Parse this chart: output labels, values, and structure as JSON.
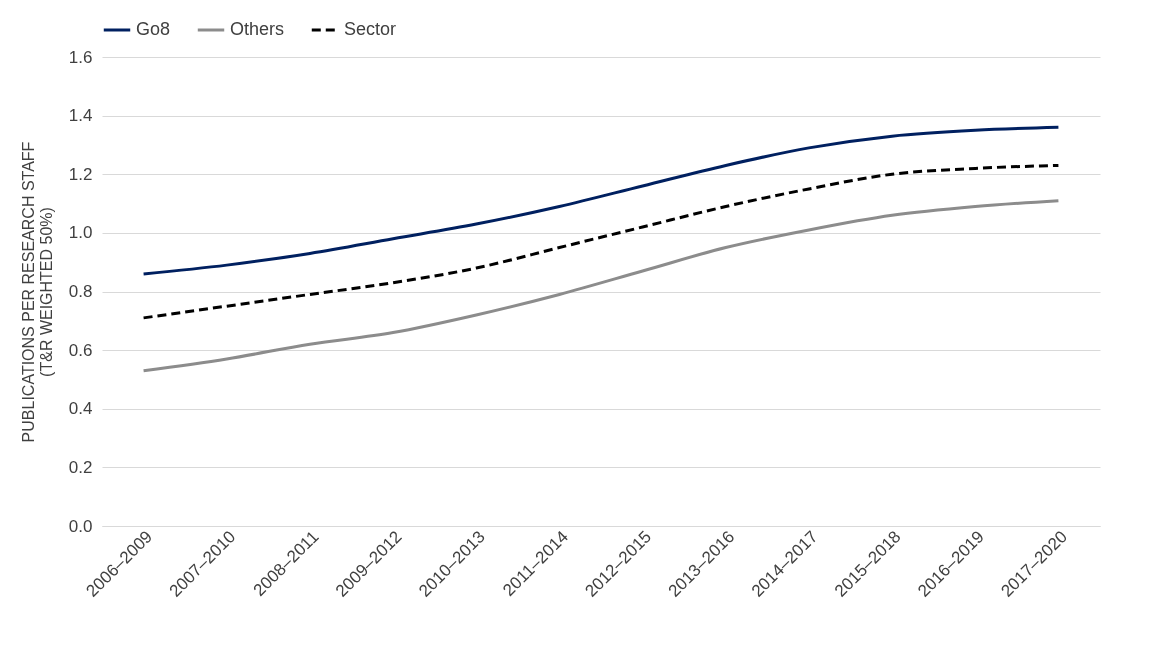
{
  "chart_data": {
    "type": "line",
    "ylabel": "PUBLICATIONS PER RESEARCH STAFF (T&R WEIGHTED 50%)",
    "categories": [
      "2006–2009",
      "2007–2010",
      "2008–2011",
      "2009–2012",
      "2010–2013",
      "2011–2014",
      "2012–2015",
      "2013–2016",
      "2014–2017",
      "2015–2018",
      "2016–2019",
      "2017–2020"
    ],
    "series": [
      {
        "name": "Go8",
        "color": "#002060",
        "line_style": "solid",
        "values": [
          0.86,
          0.89,
          0.93,
          0.98,
          1.03,
          1.09,
          1.16,
          1.23,
          1.29,
          1.33,
          1.35,
          1.36
        ]
      },
      {
        "name": "Others",
        "color": "#8c8c8c",
        "line_style": "solid",
        "values": [
          0.53,
          0.57,
          0.62,
          0.66,
          0.72,
          0.79,
          0.87,
          0.95,
          1.01,
          1.06,
          1.09,
          1.11
        ]
      },
      {
        "name": "Sector",
        "color": "#000000",
        "line_style": "dashed",
        "values": [
          0.71,
          0.75,
          0.79,
          0.83,
          0.88,
          0.95,
          1.02,
          1.09,
          1.15,
          1.2,
          1.22,
          1.23
        ]
      }
    ],
    "ylim": [
      0,
      1.6
    ],
    "yticks": [
      {
        "value": 0,
        "label": "0.0"
      },
      0.2,
      0.4,
      0.6,
      0.8,
      {
        "value": 1,
        "label": "1.0"
      },
      1.2,
      1.4,
      1.6
    ],
    "grid": "y",
    "legend": "top",
    "marker": "none"
  }
}
